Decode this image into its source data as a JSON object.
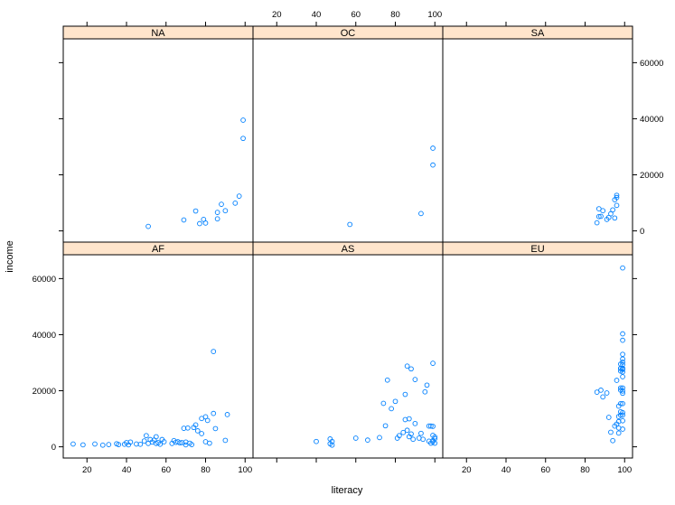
{
  "chart_data": {
    "type": "scatter",
    "xlabel": "literacy",
    "ylabel": "income",
    "xlim": [
      8,
      104
    ],
    "ylim": [
      -4000,
      68500
    ],
    "x_ticks": [
      20,
      40,
      60,
      80,
      100
    ],
    "y_ticks": [
      0,
      20000,
      40000,
      60000
    ],
    "strip_color": "#ffe5cc",
    "point_color": "#0080ff",
    "panels": [
      {
        "name": "NA",
        "x": [
          51,
          69,
          75,
          77,
          79,
          80,
          86,
          86,
          88,
          90,
          95,
          97,
          99,
          99
        ],
        "y": [
          1600,
          3900,
          7100,
          2600,
          4100,
          2800,
          4300,
          6600,
          9500,
          7200,
          9900,
          12400,
          33000,
          39500
        ]
      },
      {
        "name": "OC",
        "x": [
          57,
          93,
          99,
          99
        ],
        "y": [
          2300,
          6200,
          23500,
          29500
        ]
      },
      {
        "name": "SA",
        "x": [
          86,
          87,
          87,
          88,
          89,
          91,
          92,
          93,
          94,
          95,
          95,
          96,
          96,
          96
        ],
        "y": [
          2900,
          5100,
          7900,
          5200,
          7200,
          4100,
          4800,
          6100,
          7500,
          4600,
          11100,
          11900,
          12700,
          9100
        ]
      },
      {
        "name": "AF",
        "x": [
          13,
          18,
          24,
          28,
          31,
          35,
          36,
          39,
          40,
          41,
          42,
          45,
          47,
          49,
          50,
          51,
          52,
          53,
          54,
          55,
          55,
          56,
          57,
          58,
          59,
          63,
          64,
          65,
          66,
          67,
          68,
          69,
          70,
          70,
          71,
          72,
          73,
          74,
          75,
          76,
          78,
          78,
          80,
          80,
          81,
          82,
          84,
          84,
          85,
          90,
          91
        ],
        "y": [
          1000,
          700,
          1000,
          600,
          800,
          1100,
          800,
          900,
          1500,
          700,
          1700,
          1000,
          900,
          2100,
          4000,
          1200,
          2600,
          1700,
          2400,
          3600,
          1200,
          1500,
          900,
          2600,
          1800,
          1200,
          2200,
          1600,
          1800,
          1400,
          1500,
          6600,
          700,
          1700,
          6700,
          1300,
          800,
          6900,
          7800,
          5700,
          10100,
          4700,
          10700,
          1800,
          9400,
          1300,
          11900,
          34000,
          6500,
          2300,
          11500
        ]
      },
      {
        "name": "AS",
        "x": [
          40,
          47,
          47,
          48,
          48,
          60,
          66,
          72,
          74,
          75,
          76,
          78,
          80,
          81,
          82,
          84,
          85,
          85,
          86,
          86,
          87,
          87,
          88,
          88,
          89,
          90,
          90,
          92,
          93,
          94,
          95,
          96,
          97,
          97,
          98,
          98,
          99,
          99,
          99,
          99,
          99,
          100,
          100,
          100
        ],
        "y": [
          1900,
          2800,
          1100,
          1900,
          600,
          3100,
          2400,
          3300,
          15500,
          7500,
          23800,
          13600,
          16200,
          3100,
          4000,
          5100,
          18700,
          9700,
          5900,
          28800,
          10000,
          3600,
          4600,
          27800,
          2700,
          24000,
          8300,
          3100,
          4800,
          2700,
          19600,
          22000,
          2000,
          7400,
          1300,
          7400,
          29800,
          7300,
          4100,
          2200,
          1800,
          1300,
          3500,
          2900
        ]
      },
      {
        "name": "EU",
        "x": [
          86,
          88,
          89,
          91,
          92,
          93,
          94,
          95,
          96,
          96,
          97,
          97,
          97,
          97,
          97,
          98,
          98,
          98,
          98,
          98,
          98,
          98,
          98,
          98,
          99,
          99,
          99,
          99,
          99,
          99,
          99,
          99,
          99,
          99,
          99,
          99,
          99,
          99,
          99,
          99,
          99,
          99,
          99,
          99
        ],
        "y": [
          19500,
          20200,
          17800,
          19200,
          10500,
          5200,
          2200,
          7400,
          8100,
          23700,
          9000,
          14500,
          4900,
          6700,
          10800,
          15400,
          20200,
          21000,
          27000,
          11300,
          27900,
          28000,
          29500,
          12500,
          63800,
          40300,
          38000,
          33000,
          31300,
          30200,
          29300,
          28000,
          27800,
          26700,
          25000,
          21000,
          19900,
          15400,
          12200,
          11300,
          9300,
          6300,
          19100,
          27600
        ]
      }
    ]
  }
}
